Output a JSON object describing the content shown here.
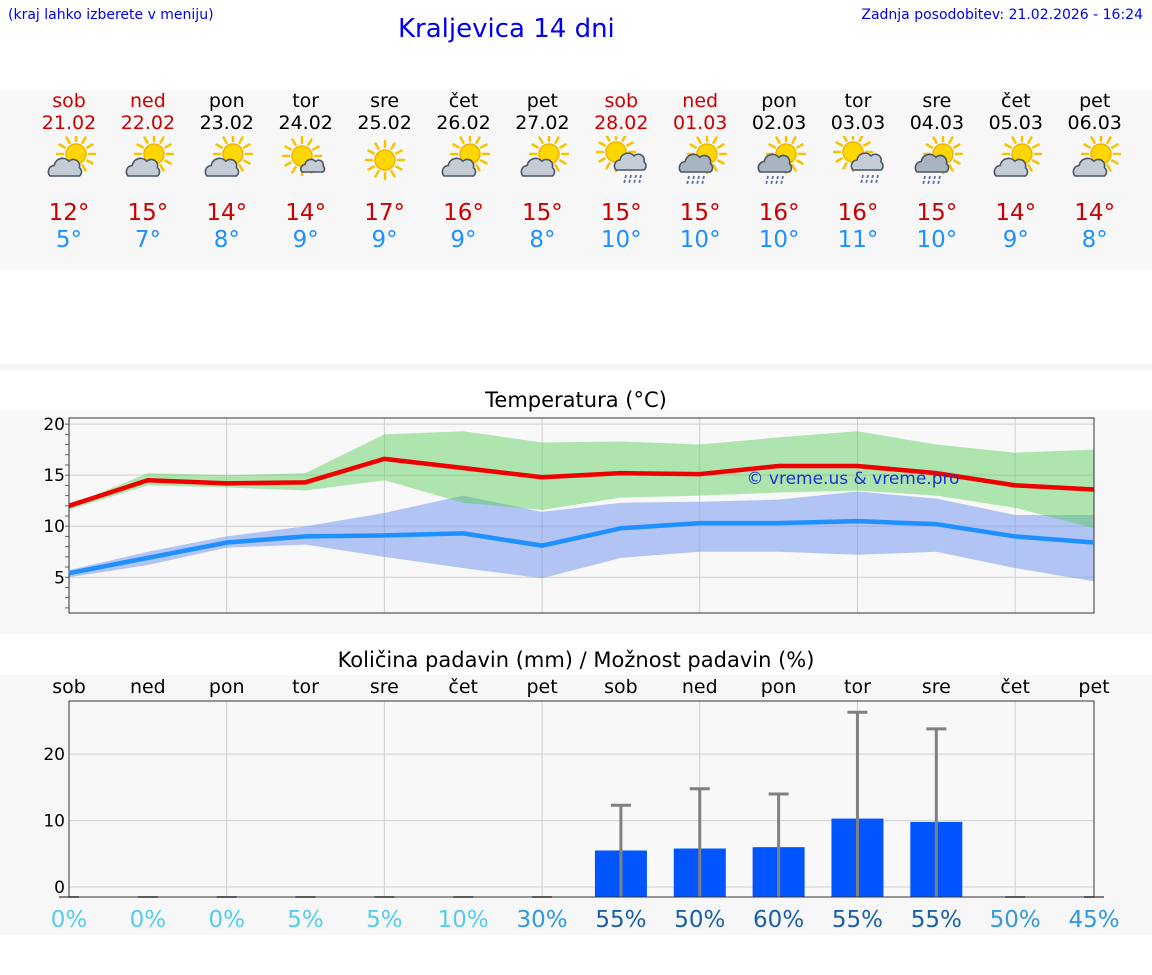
{
  "header": {
    "note": "(kraj lahko izberete v meniju)",
    "title": "Kraljevica 14 dni",
    "update": "Zadnja posodobitev: 21.02.2026 - 16:24"
  },
  "colors": {
    "max": "#cc0000",
    "min": "#1e90ff",
    "maxLine": "#ee0000",
    "minLine": "#1e90ff",
    "bar": "#0055ff"
  },
  "days": [
    {
      "name": "sob",
      "date": "21.02",
      "icon": "partly-cloudy-icon",
      "max": "12°",
      "min": "5°",
      "weekend": true
    },
    {
      "name": "ned",
      "date": "22.02",
      "icon": "partly-cloudy-icon",
      "max": "15°",
      "min": "7°",
      "weekend": true
    },
    {
      "name": "pon",
      "date": "23.02",
      "icon": "partly-cloudy-icon",
      "max": "14°",
      "min": "8°",
      "weekend": false
    },
    {
      "name": "tor",
      "date": "24.02",
      "icon": "sun-small-cloud-icon",
      "max": "14°",
      "min": "9°",
      "weekend": false
    },
    {
      "name": "sre",
      "date": "25.02",
      "icon": "sun-icon",
      "max": "17°",
      "min": "9°",
      "weekend": false
    },
    {
      "name": "čet",
      "date": "26.02",
      "icon": "partly-cloudy-icon",
      "max": "16°",
      "min": "9°",
      "weekend": false
    },
    {
      "name": "pet",
      "date": "27.02",
      "icon": "partly-cloudy-icon",
      "max": "15°",
      "min": "8°",
      "weekend": false
    },
    {
      "name": "sob",
      "date": "28.02",
      "icon": "sun-rain-cloud-icon",
      "max": "15°",
      "min": "10°",
      "weekend": true
    },
    {
      "name": "ned",
      "date": "01.03",
      "icon": "sun-rain-icon",
      "max": "15°",
      "min": "10°",
      "weekend": true
    },
    {
      "name": "pon",
      "date": "02.03",
      "icon": "sun-rain-icon",
      "max": "16°",
      "min": "10°",
      "weekend": false
    },
    {
      "name": "tor",
      "date": "03.03",
      "icon": "sun-rain-cloud-icon",
      "max": "16°",
      "min": "11°",
      "weekend": false
    },
    {
      "name": "sre",
      "date": "04.03",
      "icon": "sun-rain-icon",
      "max": "15°",
      "min": "10°",
      "weekend": false
    },
    {
      "name": "čet",
      "date": "05.03",
      "icon": "partly-cloudy-icon",
      "max": "14°",
      "min": "9°",
      "weekend": false
    },
    {
      "name": "pet",
      "date": "06.03",
      "icon": "partly-cloudy-icon",
      "max": "14°",
      "min": "8°",
      "weekend": false
    }
  ],
  "chart_data": [
    {
      "type": "line",
      "title": "Temperatura (°C)",
      "watermark": "© vreme.us & vreme.pro",
      "ylim": [
        1.5,
        20.6
      ],
      "yticks": [
        5,
        10,
        15,
        20
      ],
      "x": [
        0,
        1,
        2,
        3,
        4,
        5,
        6,
        7,
        8,
        9,
        10,
        11,
        12,
        13
      ],
      "series": [
        {
          "name": "max",
          "values": [
            12,
            14.5,
            14.2,
            14.3,
            16.6,
            15.7,
            14.8,
            15.2,
            15.1,
            15.9,
            15.9,
            15.2,
            14,
            13.6
          ]
        },
        {
          "name": "min",
          "values": [
            5.4,
            6.9,
            8.4,
            9,
            9.1,
            9.3,
            8.1,
            9.8,
            10.3,
            10.3,
            10.5,
            10.2,
            9,
            8.4
          ]
        }
      ],
      "bands": [
        {
          "name": "max-range",
          "upper": [
            12,
            15.2,
            15,
            15.2,
            19,
            19.3,
            18.2,
            18.3,
            18,
            18.7,
            19.3,
            18,
            17.2,
            17.5
          ],
          "lower": [
            11.6,
            14,
            13.8,
            13.5,
            14.5,
            12.3,
            11.6,
            12.8,
            13,
            13.3,
            13.5,
            13,
            11.8,
            9.8
          ]
        },
        {
          "name": "min-range",
          "upper": [
            5.7,
            7.5,
            9,
            10,
            11.3,
            13,
            11.4,
            12.3,
            12.4,
            12.6,
            13.4,
            12.7,
            11.1,
            11.1
          ]
        },
        {
          "name": "min-range-lower",
          "values": [
            5,
            6.2,
            7.9,
            8.2,
            7,
            5.9,
            4.9,
            6.9,
            7.5,
            7.5,
            7.2,
            7.5,
            5.9,
            4.6
          ]
        }
      ]
    },
    {
      "type": "bar",
      "title": "Količina padavin (mm) / Možnost padavin (%)",
      "categories": [
        "sob",
        "ned",
        "pon",
        "tor",
        "sre",
        "čet",
        "pet",
        "sob",
        "ned",
        "pon",
        "tor",
        "sre",
        "čet",
        "pet"
      ],
      "values": [
        0,
        0,
        0,
        0,
        0,
        0,
        0,
        5.5,
        5.8,
        6,
        10.3,
        9.8,
        0,
        0
      ],
      "error_max": [
        0,
        0,
        0,
        0,
        0,
        0,
        0,
        12.3,
        14.8,
        14,
        26.3,
        23.8,
        0,
        0
      ],
      "chance": [
        "0%",
        "0%",
        "0%",
        "5%",
        "5%",
        "10%",
        "30%",
        "55%",
        "50%",
        "60%",
        "55%",
        "55%",
        "50%",
        "45%"
      ],
      "chance_colors": [
        "#55ccee",
        "#55ccee",
        "#55ccee",
        "#55ccee",
        "#55ccee",
        "#55ccee",
        "#3399dd",
        "#1a5fa8",
        "#1a5fa8",
        "#1a5fa8",
        "#1a5fa8",
        "#1a5fa8",
        "#3399dd",
        "#3399dd"
      ],
      "ylim": [
        -1.5,
        28
      ],
      "yticks": [
        0,
        10,
        20
      ]
    }
  ]
}
